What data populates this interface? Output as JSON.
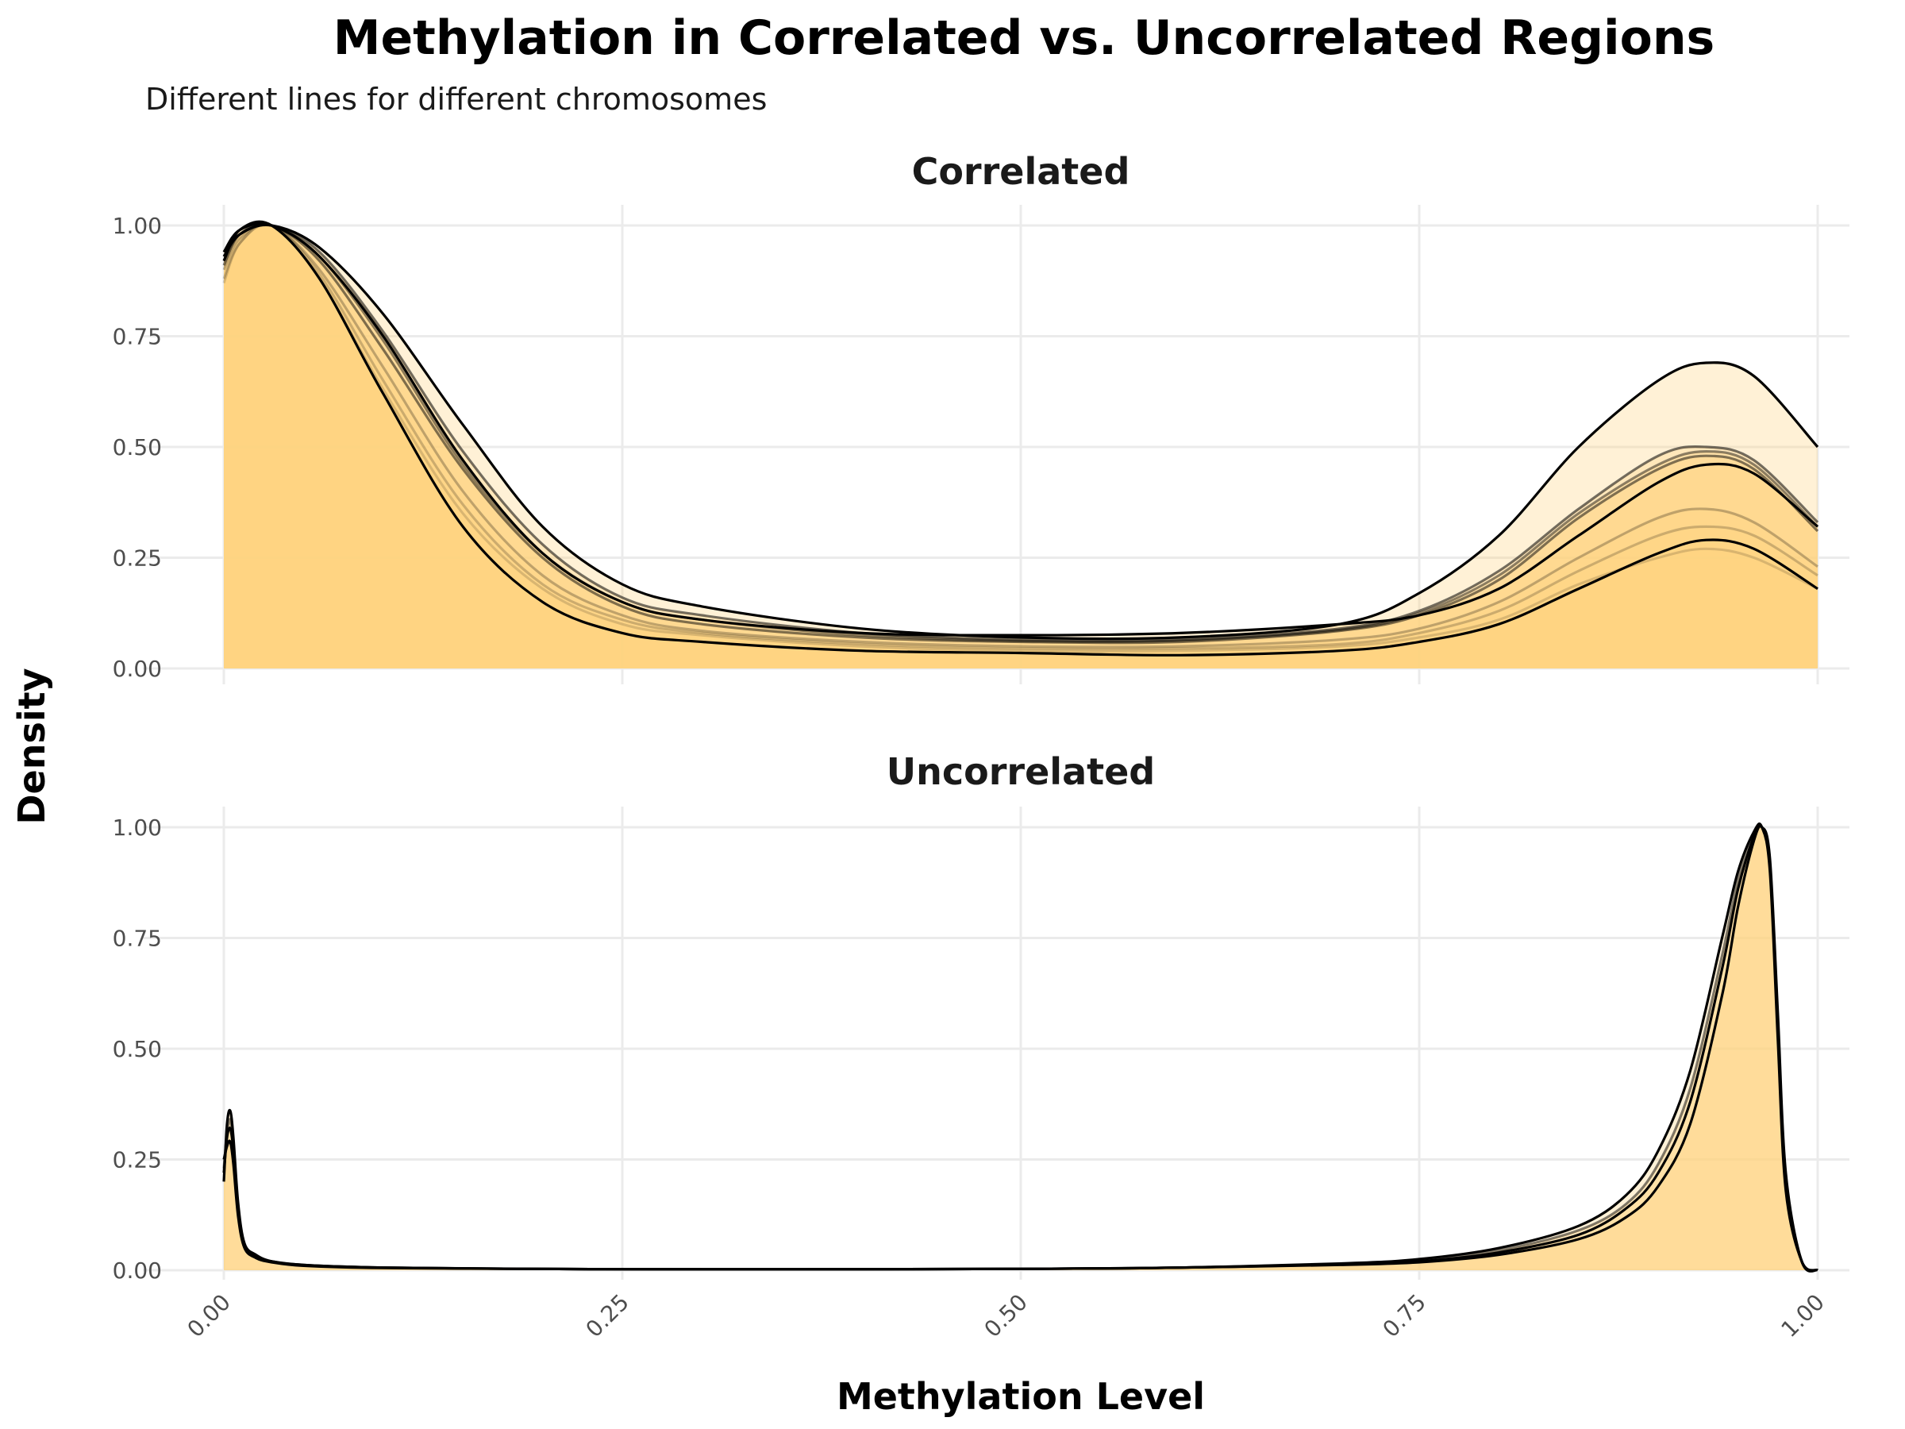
{
  "title": "Methylation in Correlated vs. Uncorrelated Regions",
  "subtitle": "Different lines for different chromosomes",
  "colors": {
    "fill": "#ffd27f",
    "line": "#000000",
    "grid": "#ebebeb"
  },
  "chart_data": {
    "type": "area",
    "xlabel": "Methylation Level",
    "ylabel": "Density",
    "xlim": [
      0,
      1
    ],
    "ylim": [
      0,
      1
    ],
    "x_ticks": [
      "0.00",
      "0.25",
      "0.50",
      "0.75",
      "1.00"
    ],
    "y_ticks": [
      "0.00",
      "0.25",
      "0.50",
      "0.75",
      "1.00"
    ],
    "grid": true,
    "legend": "none",
    "facets": [
      {
        "label": "Correlated",
        "series": [
          {
            "opacity": 1.0,
            "x": [
              0,
              0.01,
              0.03,
              0.06,
              0.1,
              0.15,
              0.2,
              0.25,
              0.3,
              0.4,
              0.5,
              0.6,
              0.7,
              0.75,
              0.8,
              0.85,
              0.9,
              0.93,
              0.96,
              1.0
            ],
            "y": [
              0.93,
              0.98,
              1.0,
              0.95,
              0.8,
              0.55,
              0.32,
              0.19,
              0.14,
              0.09,
              0.07,
              0.07,
              0.1,
              0.17,
              0.3,
              0.5,
              0.65,
              0.69,
              0.66,
              0.5
            ]
          },
          {
            "opacity": 1.0,
            "x": [
              0,
              0.01,
              0.03,
              0.06,
              0.1,
              0.15,
              0.2,
              0.25,
              0.3,
              0.4,
              0.5,
              0.6,
              0.7,
              0.75,
              0.8,
              0.85,
              0.9,
              0.93,
              0.96,
              1.0
            ],
            "y": [
              0.94,
              0.99,
              1.0,
              0.93,
              0.75,
              0.47,
              0.26,
              0.15,
              0.11,
              0.08,
              0.075,
              0.08,
              0.1,
              0.12,
              0.18,
              0.3,
              0.42,
              0.46,
              0.44,
              0.32
            ]
          },
          {
            "opacity": 1.0,
            "x": [
              0,
              0.01,
              0.03,
              0.06,
              0.1,
              0.15,
              0.2,
              0.25,
              0.3,
              0.4,
              0.5,
              0.6,
              0.7,
              0.75,
              0.8,
              0.85,
              0.9,
              0.93,
              0.96,
              1.0
            ],
            "y": [
              0.92,
              0.99,
              1.0,
              0.88,
              0.62,
              0.32,
              0.15,
              0.08,
              0.06,
              0.04,
              0.035,
              0.03,
              0.04,
              0.06,
              0.1,
              0.18,
              0.26,
              0.29,
              0.27,
              0.18
            ]
          },
          {
            "opacity": 0.55,
            "x": [
              0,
              0.01,
              0.03,
              0.06,
              0.1,
              0.15,
              0.2,
              0.25,
              0.3,
              0.4,
              0.5,
              0.6,
              0.7,
              0.75,
              0.8,
              0.85,
              0.9,
              0.93,
              0.96,
              1.0
            ],
            "y": [
              0.93,
              0.98,
              1.0,
              0.94,
              0.76,
              0.49,
              0.28,
              0.16,
              0.12,
              0.08,
              0.065,
              0.065,
              0.09,
              0.13,
              0.22,
              0.36,
              0.48,
              0.5,
              0.47,
              0.33
            ]
          },
          {
            "opacity": 0.5,
            "x": [
              0,
              0.01,
              0.03,
              0.06,
              0.1,
              0.15,
              0.2,
              0.25,
              0.3,
              0.4,
              0.5,
              0.6,
              0.7,
              0.75,
              0.8,
              0.85,
              0.9,
              0.93,
              0.96,
              1.0
            ],
            "y": [
              0.91,
              0.98,
              1.0,
              0.92,
              0.72,
              0.45,
              0.25,
              0.14,
              0.1,
              0.07,
              0.06,
              0.06,
              0.085,
              0.12,
              0.2,
              0.34,
              0.45,
              0.48,
              0.45,
              0.31
            ]
          },
          {
            "opacity": 0.45,
            "x": [
              0,
              0.01,
              0.03,
              0.06,
              0.1,
              0.15,
              0.2,
              0.25,
              0.3,
              0.4,
              0.5,
              0.6,
              0.7,
              0.75,
              0.8,
              0.85,
              0.9,
              0.93,
              0.96,
              1.0
            ],
            "y": [
              0.92,
              0.98,
              1.0,
              0.93,
              0.74,
              0.46,
              0.26,
              0.15,
              0.11,
              0.075,
              0.062,
              0.063,
              0.087,
              0.125,
              0.21,
              0.35,
              0.46,
              0.49,
              0.46,
              0.32
            ]
          },
          {
            "opacity": 0.25,
            "x": [
              0,
              0.01,
              0.03,
              0.06,
              0.1,
              0.15,
              0.2,
              0.25,
              0.3,
              0.4,
              0.5,
              0.6,
              0.7,
              0.75,
              0.8,
              0.85,
              0.9,
              0.93,
              0.96,
              1.0
            ],
            "y": [
              0.9,
              0.97,
              1.0,
              0.9,
              0.68,
              0.4,
              0.21,
              0.12,
              0.085,
              0.06,
              0.05,
              0.05,
              0.065,
              0.09,
              0.15,
              0.25,
              0.34,
              0.36,
              0.33,
              0.23
            ]
          },
          {
            "opacity": 0.2,
            "x": [
              0,
              0.01,
              0.03,
              0.06,
              0.1,
              0.15,
              0.2,
              0.25,
              0.3,
              0.4,
              0.5,
              0.6,
              0.7,
              0.75,
              0.8,
              0.85,
              0.9,
              0.93,
              0.96,
              1.0
            ],
            "y": [
              0.88,
              0.96,
              1.0,
              0.89,
              0.65,
              0.37,
              0.19,
              0.11,
              0.08,
              0.055,
              0.045,
              0.045,
              0.055,
              0.08,
              0.13,
              0.22,
              0.3,
              0.32,
              0.3,
              0.21
            ]
          },
          {
            "opacity": 0.15,
            "x": [
              0,
              0.01,
              0.03,
              0.06,
              0.1,
              0.15,
              0.2,
              0.25,
              0.3,
              0.4,
              0.5,
              0.6,
              0.7,
              0.75,
              0.8,
              0.85,
              0.9,
              0.93,
              0.96,
              1.0
            ],
            "y": [
              0.87,
              0.96,
              1.0,
              0.88,
              0.63,
              0.35,
              0.18,
              0.1,
              0.075,
              0.05,
              0.04,
              0.04,
              0.05,
              0.07,
              0.11,
              0.19,
              0.25,
              0.27,
              0.25,
              0.18
            ]
          }
        ]
      },
      {
        "label": "Uncorrelated",
        "series": [
          {
            "opacity": 1.0,
            "x": [
              0,
              0.002,
              0.004,
              0.006,
              0.009,
              0.013,
              0.02,
              0.03,
              0.05,
              0.1,
              0.2,
              0.3,
              0.5,
              0.6,
              0.7,
              0.75,
              0.8,
              0.85,
              0.88,
              0.9,
              0.92,
              0.94,
              0.95,
              0.96,
              0.965,
              0.97,
              0.975,
              0.98,
              0.99,
              1.0
            ],
            "y": [
              0.2,
              0.33,
              0.36,
              0.3,
              0.15,
              0.06,
              0.035,
              0.02,
              0.012,
              0.006,
              0.003,
              0.002,
              0.003,
              0.006,
              0.013,
              0.02,
              0.04,
              0.08,
              0.14,
              0.22,
              0.38,
              0.68,
              0.86,
              0.98,
              1.0,
              0.92,
              0.55,
              0.2,
              0.02,
              0.0
            ]
          },
          {
            "opacity": 1.0,
            "x": [
              0,
              0.002,
              0.004,
              0.006,
              0.009,
              0.013,
              0.02,
              0.03,
              0.05,
              0.1,
              0.2,
              0.3,
              0.5,
              0.6,
              0.7,
              0.75,
              0.8,
              0.85,
              0.88,
              0.9,
              0.92,
              0.94,
              0.95,
              0.96,
              0.965,
              0.97,
              0.975,
              0.98,
              0.99,
              1.0
            ],
            "y": [
              0.22,
              0.3,
              0.32,
              0.27,
              0.13,
              0.055,
              0.03,
              0.02,
              0.012,
              0.006,
              0.003,
              0.002,
              0.003,
              0.006,
              0.015,
              0.025,
              0.05,
              0.1,
              0.17,
              0.27,
              0.45,
              0.75,
              0.9,
              0.99,
              1.0,
              0.9,
              0.52,
              0.18,
              0.02,
              0.0
            ]
          },
          {
            "opacity": 1.0,
            "x": [
              0,
              0.002,
              0.004,
              0.006,
              0.009,
              0.013,
              0.02,
              0.03,
              0.05,
              0.1,
              0.2,
              0.3,
              0.5,
              0.6,
              0.7,
              0.75,
              0.8,
              0.85,
              0.88,
              0.9,
              0.92,
              0.94,
              0.95,
              0.96,
              0.965,
              0.97,
              0.975,
              0.98,
              0.99,
              1.0
            ],
            "y": [
              0.25,
              0.28,
              0.29,
              0.24,
              0.12,
              0.05,
              0.028,
              0.018,
              0.01,
              0.005,
              0.003,
              0.002,
              0.003,
              0.006,
              0.012,
              0.018,
              0.035,
              0.07,
              0.12,
              0.19,
              0.33,
              0.62,
              0.82,
              0.97,
              1.0,
              0.93,
              0.58,
              0.22,
              0.02,
              0.0
            ]
          },
          {
            "opacity": 0.5,
            "x": [
              0,
              0.002,
              0.004,
              0.006,
              0.009,
              0.013,
              0.02,
              0.03,
              0.05,
              0.1,
              0.2,
              0.3,
              0.5,
              0.6,
              0.7,
              0.75,
              0.8,
              0.85,
              0.88,
              0.9,
              0.92,
              0.94,
              0.95,
              0.96,
              0.965,
              0.97,
              0.975,
              0.98,
              0.99,
              1.0
            ],
            "y": [
              0.23,
              0.31,
              0.34,
              0.28,
              0.14,
              0.058,
              0.032,
              0.02,
              0.011,
              0.006,
              0.003,
              0.002,
              0.003,
              0.006,
              0.014,
              0.022,
              0.045,
              0.09,
              0.15,
              0.24,
              0.41,
              0.71,
              0.88,
              0.98,
              1.0,
              0.91,
              0.54,
              0.19,
              0.02,
              0.0
            ]
          }
        ]
      }
    ]
  }
}
